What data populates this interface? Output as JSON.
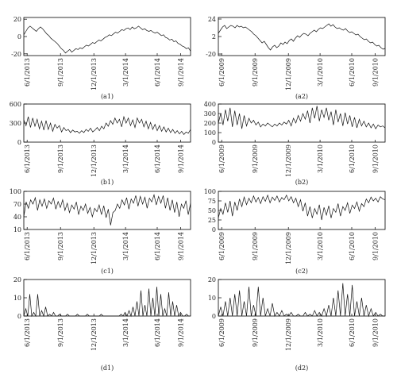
{
  "chart_data": [
    {
      "panel": "(a1)",
      "type": "line",
      "x_ticks": [
        "6/1/2013",
        "9/1/2013",
        "12/1/2013",
        "3/1/2014",
        "6/1/2014",
        "9/1/2014"
      ],
      "y_ticks": [
        -20,
        0,
        20
      ],
      "ylim": [
        -22,
        22
      ],
      "series": [
        {
          "values": [
            2,
            6,
            10,
            12,
            10,
            8,
            6,
            9,
            11,
            9,
            6,
            3,
            1,
            -2,
            -4,
            -6,
            -8,
            -11,
            -14,
            -16,
            -19,
            -17,
            -15,
            -18,
            -16,
            -14,
            -15,
            -13,
            -14,
            -12,
            -10,
            -11,
            -9,
            -7,
            -8,
            -6,
            -4,
            -5,
            -3,
            -1,
            0,
            2,
            1,
            3,
            5,
            4,
            6,
            8,
            7,
            9,
            10,
            8,
            11,
            9,
            10,
            12,
            10,
            8,
            9,
            7,
            6,
            7,
            5,
            4,
            5,
            3,
            1,
            2,
            -1,
            -2,
            -4,
            -3,
            -6,
            -5,
            -8,
            -9,
            -11,
            -12,
            -14,
            -13,
            -17
          ]
        }
      ]
    },
    {
      "panel": "(a2)",
      "type": "line",
      "x_ticks": [
        "6/1/2009",
        "9/1/2009",
        "12/1/2009",
        "3/1/2010",
        "6/1/2010",
        "9/1/2010"
      ],
      "y_ticks": [
        -20,
        2,
        24
      ],
      "ylim": [
        -22,
        26
      ],
      "series": [
        {
          "values": [
            6,
            10,
            14,
            16,
            12,
            14,
            16,
            15,
            13,
            16,
            14,
            15,
            13,
            14,
            12,
            10,
            8,
            5,
            3,
            0,
            -3,
            -6,
            -4,
            -8,
            -12,
            -15,
            -11,
            -9,
            -12,
            -10,
            -6,
            -8,
            -5,
            -7,
            -3,
            -1,
            -4,
            0,
            3,
            1,
            4,
            6,
            5,
            3,
            6,
            8,
            10,
            8,
            11,
            13,
            12,
            14,
            16,
            18,
            15,
            17,
            14,
            12,
            13,
            11,
            10,
            12,
            9,
            7,
            8,
            6,
            4,
            5,
            2,
            0,
            -2,
            -1,
            -4,
            -6,
            -5,
            -8,
            -10,
            -9,
            -12,
            -14,
            -13
          ]
        }
      ]
    },
    {
      "panel": "(b1)",
      "type": "line",
      "x_ticks": [
        "6/1/2013",
        "9/1/2013",
        "12/1/2013",
        "3/1/2014",
        "6/1/2014",
        "9/1/2014"
      ],
      "y_ticks": [
        0,
        300,
        600
      ],
      "ylim": [
        0,
        600
      ],
      "series": [
        {
          "values": [
            350,
            260,
            400,
            230,
            380,
            250,
            360,
            210,
            330,
            190,
            340,
            200,
            300,
            170,
            280,
            220,
            260,
            160,
            230,
            180,
            200,
            150,
            190,
            160,
            170,
            140,
            180,
            150,
            200,
            170,
            220,
            160,
            190,
            230,
            180,
            250,
            210,
            300,
            250,
            340,
            280,
            380,
            300,
            360,
            240,
            400,
            300,
            380,
            260,
            350,
            230,
            380,
            300,
            360,
            240,
            330,
            210,
            310,
            200,
            280,
            180,
            260,
            170,
            240,
            160,
            220,
            150,
            200,
            140,
            180,
            130,
            170,
            120,
            160,
            140,
            200
          ]
        }
      ]
    },
    {
      "panel": "(b2)",
      "type": "line",
      "x_ticks": [
        "6/1/2009",
        "9/1/2009",
        "12/1/2009",
        "3/1/2010",
        "6/1/2010",
        "9/1/2010"
      ],
      "y_ticks": [
        0,
        100,
        200,
        300,
        400
      ],
      "ylim": [
        0,
        400
      ],
      "series": [
        {
          "values": [
            200,
            300,
            180,
            340,
            220,
            360,
            160,
            330,
            180,
            300,
            140,
            280,
            170,
            250,
            200,
            230,
            180,
            210,
            160,
            190,
            170,
            200,
            180,
            160,
            190,
            170,
            200,
            180,
            210,
            190,
            230,
            170,
            250,
            200,
            280,
            220,
            300,
            240,
            330,
            200,
            360,
            250,
            380,
            220,
            340,
            260,
            360,
            230,
            320,
            180,
            340,
            210,
            300,
            170,
            310,
            190,
            280,
            160,
            260,
            150,
            240,
            170,
            220,
            160,
            200,
            150,
            190,
            140,
            180,
            160,
            170,
            150
          ]
        }
      ]
    },
    {
      "panel": "(c1)",
      "type": "line",
      "x_ticks": [
        "6/1/2013",
        "9/1/2013",
        "12/1/2013",
        "3/1/2014",
        "6/1/2014",
        "9/1/2014"
      ],
      "y_ticks": [
        10,
        40,
        70,
        100
      ],
      "ylim": [
        10,
        100
      ],
      "series": [
        {
          "values": [
            40,
            75,
            60,
            80,
            70,
            85,
            55,
            80,
            65,
            82,
            60,
            78,
            70,
            84,
            58,
            76,
            62,
            80,
            55,
            72,
            50,
            68,
            58,
            75,
            45,
            65,
            55,
            70,
            48,
            62,
            40,
            60,
            52,
            68,
            45,
            66,
            38,
            58,
            20,
            50,
            55,
            70,
            60,
            80,
            68,
            85,
            58,
            82,
            72,
            90,
            65,
            88,
            70,
            86,
            60,
            84,
            75,
            92,
            68,
            88,
            72,
            90,
            60,
            85,
            55,
            80,
            50,
            75,
            40,
            70,
            60,
            78,
            45,
            72
          ]
        }
      ]
    },
    {
      "panel": "(c2)",
      "type": "line",
      "x_ticks": [
        "6/1/2009",
        "9/1/2009",
        "12/1/2009",
        "3/1/2010",
        "6/1/2010",
        "9/1/2010"
      ],
      "y_ticks": [
        0,
        25,
        50,
        75,
        100
      ],
      "ylim": [
        0,
        100
      ],
      "series": [
        {
          "values": [
            30,
            55,
            40,
            70,
            45,
            75,
            35,
            72,
            50,
            80,
            60,
            85,
            65,
            82,
            70,
            88,
            72,
            84,
            68,
            86,
            74,
            90,
            70,
            85,
            76,
            88,
            72,
            84,
            78,
            90,
            75,
            86,
            70,
            82,
            60,
            78,
            48,
            70,
            35,
            60,
            30,
            55,
            40,
            65,
            25,
            58,
            38,
            62,
            30,
            55,
            45,
            68,
            35,
            60,
            50,
            70,
            42,
            64,
            55,
            72,
            48,
            68,
            60,
            80,
            70,
            85,
            75,
            82,
            72,
            86,
            80,
            78
          ]
        }
      ]
    },
    {
      "panel": "(d1)",
      "type": "line",
      "x_ticks": [
        "6/1/2013",
        "9/1/2013",
        "12/1/2013",
        "3/1/2014",
        "6/1/2014",
        "9/1/2014"
      ],
      "y_ticks": [
        0,
        10,
        20
      ],
      "ylim": [
        0,
        20
      ],
      "series": [
        {
          "values": [
            0,
            4,
            0,
            12,
            0,
            2,
            0,
            12,
            0,
            3,
            0,
            5,
            0,
            1,
            0,
            2,
            0,
            0,
            1,
            0,
            0,
            0,
            1,
            0,
            0,
            0,
            0,
            1,
            0,
            0,
            0,
            0,
            1,
            0,
            0,
            0,
            0,
            0,
            0,
            1,
            0,
            0,
            0,
            0,
            0,
            0,
            0,
            0,
            0,
            1,
            0,
            2,
            0,
            3,
            0,
            5,
            0,
            8,
            0,
            14,
            0,
            6,
            0,
            15,
            0,
            10,
            0,
            16,
            0,
            12,
            0,
            4,
            0,
            13,
            0,
            8,
            0,
            6,
            0,
            2,
            0,
            0,
            1,
            0,
            0
          ]
        }
      ]
    },
    {
      "panel": "(d2)",
      "type": "line",
      "x_ticks": [
        "6/1/2009",
        "9/1/2009",
        "12/1/2009",
        "3/1/2010",
        "6/1/2010",
        "9/1/2010"
      ],
      "y_ticks": [
        0,
        10,
        20
      ],
      "ylim": [
        0,
        20
      ],
      "series": [
        {
          "values": [
            0,
            5,
            0,
            8,
            0,
            10,
            0,
            12,
            0,
            14,
            0,
            8,
            0,
            16,
            0,
            6,
            0,
            16,
            0,
            10,
            0,
            4,
            0,
            7,
            0,
            2,
            0,
            3,
            0,
            1,
            0,
            2,
            0,
            0,
            1,
            0,
            0,
            2,
            0,
            1,
            0,
            3,
            0,
            2,
            0,
            4,
            0,
            6,
            0,
            10,
            0,
            14,
            0,
            18,
            0,
            12,
            0,
            17,
            0,
            8,
            0,
            10,
            0,
            6,
            0,
            4,
            0,
            2,
            0,
            1,
            0,
            0
          ]
        }
      ]
    }
  ]
}
